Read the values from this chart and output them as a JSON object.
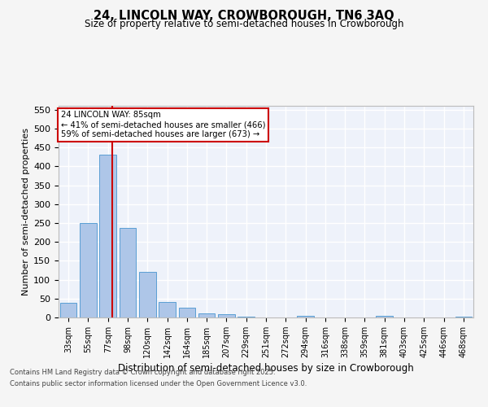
{
  "title": "24, LINCOLN WAY, CROWBOROUGH, TN6 3AQ",
  "subtitle": "Size of property relative to semi-detached houses in Crowborough",
  "xlabel": "Distribution of semi-detached houses by size in Crowborough",
  "ylabel": "Number of semi-detached properties",
  "bar_labels": [
    "33sqm",
    "55sqm",
    "77sqm",
    "98sqm",
    "120sqm",
    "142sqm",
    "164sqm",
    "185sqm",
    "207sqm",
    "229sqm",
    "251sqm",
    "272sqm",
    "294sqm",
    "316sqm",
    "338sqm",
    "359sqm",
    "381sqm",
    "403sqm",
    "425sqm",
    "446sqm",
    "468sqm"
  ],
  "bar_values": [
    38,
    250,
    430,
    237,
    120,
    40,
    25,
    10,
    9,
    3,
    0,
    0,
    4,
    0,
    0,
    0,
    5,
    0,
    0,
    0,
    3
  ],
  "bar_color": "#aec6e8",
  "bar_edge_color": "#5a9fd4",
  "vline_color": "#cc0000",
  "annotation_text": "24 LINCOLN WAY: 85sqm\n← 41% of semi-detached houses are smaller (466)\n59% of semi-detached houses are larger (673) →",
  "annotation_box_color": "#ffffff",
  "annotation_box_edge": "#cc0000",
  "ylim": [
    0,
    560
  ],
  "yticks": [
    0,
    50,
    100,
    150,
    200,
    250,
    300,
    350,
    400,
    450,
    500,
    550
  ],
  "background_color": "#eef2fa",
  "grid_color": "#ffffff",
  "fig_background": "#f5f5f5",
  "footer_line1": "Contains HM Land Registry data © Crown copyright and database right 2025.",
  "footer_line2": "Contains public sector information licensed under the Open Government Licence v3.0."
}
